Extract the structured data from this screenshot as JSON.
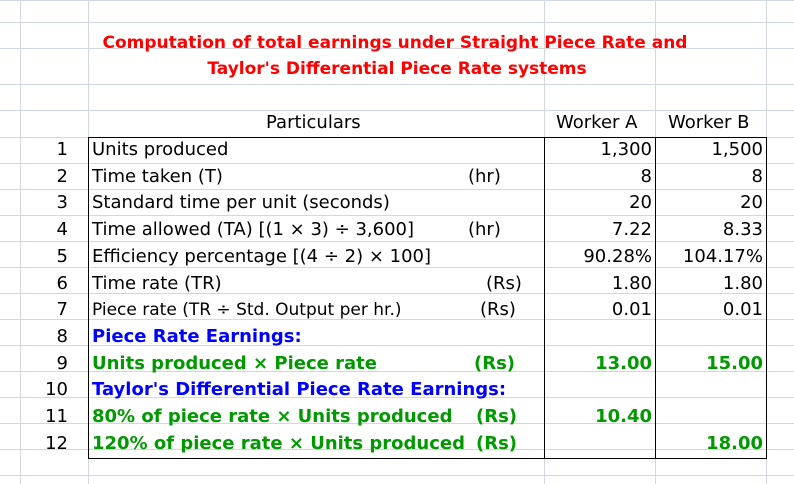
{
  "title": {
    "line1": "Computation of total earnings under Straight Piece Rate and",
    "line2": "Taylor's Differential Piece Rate systems"
  },
  "header": {
    "particulars": "Particulars",
    "worker_a": "Worker A",
    "worker_b": "Worker B"
  },
  "rows": [
    {
      "no": "1",
      "label": "Units produced",
      "unit": "",
      "a": "1,300",
      "b": "1,500"
    },
    {
      "no": "2",
      "label": "Time taken (T)",
      "unit": "(hr)",
      "a": "8",
      "b": "8"
    },
    {
      "no": "3",
      "label": "Standard time per unit (seconds)",
      "unit": "",
      "a": "20",
      "b": "20"
    },
    {
      "no": "4",
      "label": "Time allowed (TA) [(1 × 3) ÷ 3,600]",
      "unit": "(hr)",
      "a": "7.22",
      "b": "8.33"
    },
    {
      "no": "5",
      "label": "Efficiency percentage [(4 ÷ 2) × 100]",
      "unit": "",
      "a": "90.28%",
      "b": "104.17%"
    },
    {
      "no": "6",
      "label": "Time rate (TR)",
      "unit": "(Rs)",
      "a": "1.80",
      "b": "1.80"
    },
    {
      "no": "7",
      "label": "Piece rate (TR ÷ Std. Output per hr.)",
      "unit": "(Rs)",
      "a": "0.01",
      "b": "0.01"
    },
    {
      "no": "8",
      "label": "Piece Rate Earnings:",
      "unit": "",
      "a": "",
      "b": ""
    },
    {
      "no": "9",
      "label": "Units produced × Piece rate",
      "unit": "(Rs)",
      "a": "13.00",
      "b": "15.00"
    },
    {
      "no": "10",
      "label": "Taylor's Differential Piece Rate Earnings:",
      "unit": "",
      "a": "",
      "b": ""
    },
    {
      "no": "11",
      "label": "80% of piece rate × Units produced",
      "unit": "(Rs)",
      "a": "10.40",
      "b": ""
    },
    {
      "no": "12",
      "label": "120% of piece rate × Units produced",
      "unit": "(Rs)",
      "a": "",
      "b": "18.00"
    }
  ],
  "colors": {
    "title": "#ff0000",
    "section_heading": "#0000ff",
    "earnings": "#009900",
    "gridline": "#d0d7e5"
  }
}
